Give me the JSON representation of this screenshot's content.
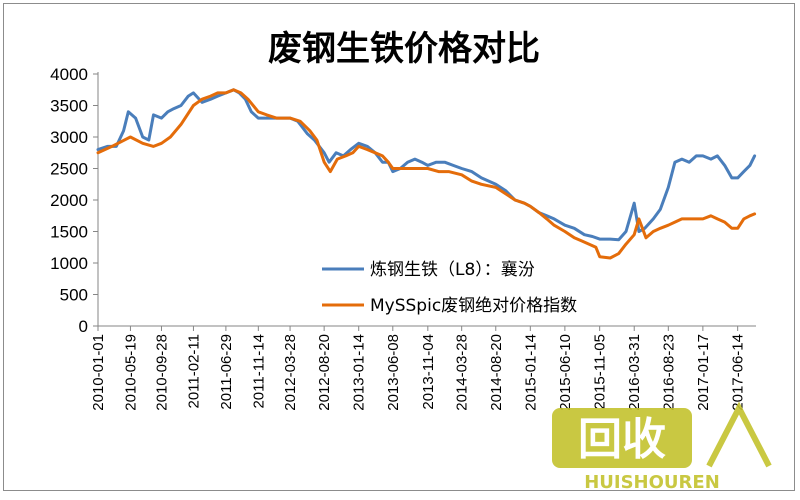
{
  "chart_data": {
    "type": "line",
    "title": "废钢生铁价格对比",
    "xlabel": "",
    "ylabel": "",
    "ylim": [
      0,
      4000
    ],
    "yticks": [
      0,
      500,
      1000,
      1500,
      2000,
      2500,
      3000,
      3500,
      4000
    ],
    "x_tick_labels": [
      "2010-01-01",
      "2010-05-19",
      "2010-09-28",
      "2011-02-11",
      "2011-06-29",
      "2011-11-14",
      "2012-03-28",
      "2012-08-20",
      "2013-01-14",
      "2013-06-08",
      "2013-11-04",
      "2014-03-28",
      "2014-08-20",
      "2015-01-14",
      "2015-06-10",
      "2015-11-05",
      "2016-03-31",
      "2016-08-23",
      "2017-01-17",
      "2017-06-14"
    ],
    "legend_position": "center-right",
    "grid": false,
    "series": [
      {
        "name": "炼钢生铁（L8）：襄汾",
        "color": "#4a7ebb",
        "x": [
          "2010-01-01",
          "2010-02-10",
          "2010-03-20",
          "2010-04-20",
          "2010-05-10",
          "2010-06-10",
          "2010-07-10",
          "2010-08-05",
          "2010-08-25",
          "2010-09-28",
          "2010-10-25",
          "2010-11-20",
          "2010-12-20",
          "2011-01-20",
          "2011-02-11",
          "2011-03-20",
          "2011-04-25",
          "2011-05-25",
          "2011-06-29",
          "2011-08-01",
          "2011-08-25",
          "2011-09-20",
          "2011-10-15",
          "2011-11-14",
          "2011-12-20",
          "2012-01-30",
          "2012-03-28",
          "2012-04-30",
          "2012-06-10",
          "2012-07-10",
          "2012-08-20",
          "2012-09-10",
          "2012-10-10",
          "2012-11-10",
          "2012-12-10",
          "2013-01-14",
          "2013-02-20",
          "2013-03-25",
          "2013-04-25",
          "2013-05-20",
          "2013-06-08",
          "2013-07-10",
          "2013-08-10",
          "2013-09-10",
          "2013-10-10",
          "2013-11-04",
          "2013-12-10",
          "2014-01-15",
          "2014-02-20",
          "2014-03-28",
          "2014-05-10",
          "2014-06-20",
          "2014-08-20",
          "2014-10-01",
          "2014-11-10",
          "2014-12-20",
          "2015-01-14",
          "2015-02-20",
          "2015-03-25",
          "2015-04-25",
          "2015-06-10",
          "2015-07-20",
          "2015-09-01",
          "2015-10-05",
          "2015-11-05",
          "2015-12-20",
          "2016-01-25",
          "2016-02-25",
          "2016-03-31",
          "2016-04-20",
          "2016-05-15",
          "2016-06-20",
          "2016-07-20",
          "2016-08-23",
          "2016-09-20",
          "2016-10-20",
          "2016-11-20",
          "2016-12-20",
          "2017-01-17",
          "2017-02-20",
          "2017-03-20",
          "2017-04-20",
          "2017-05-20",
          "2017-06-14",
          "2017-07-10",
          "2017-08-05",
          "2017-08-25"
        ],
        "values": [
          2800,
          2850,
          2850,
          3100,
          3400,
          3300,
          3000,
          2950,
          3350,
          3300,
          3400,
          3450,
          3500,
          3650,
          3700,
          3550,
          3600,
          3650,
          3700,
          3750,
          3700,
          3600,
          3400,
          3300,
          3300,
          3300,
          3300,
          3250,
          3050,
          2950,
          2750,
          2600,
          2750,
          2700,
          2800,
          2900,
          2850,
          2750,
          2600,
          2600,
          2450,
          2500,
          2600,
          2650,
          2600,
          2550,
          2600,
          2600,
          2550,
          2500,
          2450,
          2350,
          2250,
          2150,
          2000,
          1950,
          1900,
          1800,
          1750,
          1700,
          1600,
          1550,
          1450,
          1420,
          1380,
          1380,
          1370,
          1500,
          1950,
          1500,
          1550,
          1700,
          1850,
          2200,
          2600,
          2650,
          2600,
          2700,
          2700,
          2650,
          2700,
          2550,
          2350,
          2350,
          2450,
          2550,
          2700
        ]
      },
      {
        "name": "MySSpic废钢绝对价格指数",
        "color": "#e46c0a",
        "x": [
          "2010-01-01",
          "2010-03-01",
          "2010-05-19",
          "2010-07-10",
          "2010-08-25",
          "2010-09-28",
          "2010-11-05",
          "2010-12-20",
          "2011-02-11",
          "2011-03-20",
          "2011-04-25",
          "2011-05-25",
          "2011-06-29",
          "2011-08-01",
          "2011-09-01",
          "2011-10-01",
          "2011-11-14",
          "2011-12-20",
          "2012-01-30",
          "2012-03-28",
          "2012-05-10",
          "2012-06-20",
          "2012-07-20",
          "2012-08-20",
          "2012-09-15",
          "2012-10-15",
          "2012-11-20",
          "2012-12-20",
          "2013-01-14",
          "2013-02-20",
          "2013-03-25",
          "2013-04-25",
          "2013-05-20",
          "2013-06-08",
          "2013-07-10",
          "2013-08-15",
          "2013-09-20",
          "2013-11-04",
          "2013-12-20",
          "2014-02-01",
          "2014-03-28",
          "2014-05-10",
          "2014-06-20",
          "2014-08-20",
          "2014-10-01",
          "2014-11-10",
          "2014-12-20",
          "2015-01-14",
          "2015-02-20",
          "2015-03-25",
          "2015-04-25",
          "2015-06-10",
          "2015-07-20",
          "2015-08-20",
          "2015-09-20",
          "2015-10-20",
          "2015-11-05",
          "2015-12-20",
          "2016-01-25",
          "2016-02-25",
          "2016-03-31",
          "2016-04-20",
          "2016-05-20",
          "2016-06-20",
          "2016-07-20",
          "2016-08-23",
          "2016-09-20",
          "2016-10-20",
          "2016-11-20",
          "2016-12-20",
          "2017-01-17",
          "2017-02-20",
          "2017-03-20",
          "2017-04-20",
          "2017-05-20",
          "2017-06-14",
          "2017-07-10",
          "2017-08-05",
          "2017-08-25"
        ],
        "values": [
          2750,
          2850,
          3000,
          2900,
          2850,
          2900,
          3000,
          3200,
          3500,
          3600,
          3650,
          3700,
          3700,
          3750,
          3700,
          3600,
          3400,
          3350,
          3300,
          3300,
          3250,
          3100,
          2950,
          2600,
          2450,
          2650,
          2700,
          2750,
          2850,
          2800,
          2750,
          2700,
          2600,
          2500,
          2500,
          2500,
          2500,
          2500,
          2450,
          2450,
          2400,
          2300,
          2250,
          2200,
          2100,
          2000,
          1950,
          1900,
          1800,
          1700,
          1600,
          1500,
          1400,
          1350,
          1300,
          1250,
          1100,
          1080,
          1150,
          1300,
          1450,
          1700,
          1400,
          1500,
          1550,
          1600,
          1650,
          1700,
          1700,
          1700,
          1700,
          1750,
          1700,
          1650,
          1550,
          1550,
          1700,
          1750,
          1780
        ]
      }
    ]
  },
  "watermark": {
    "big_text": "回收",
    "small_text": "HUISHOUREN",
    "color": "#c4c32e"
  }
}
